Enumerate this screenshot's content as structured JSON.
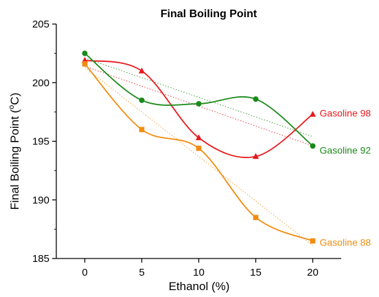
{
  "chart_data": {
    "type": "line",
    "title": "Final Boiling Point",
    "xlabel": "Ethanol (%)",
    "ylabel": {
      "prefix": "Final Boiling Point (",
      "sup": "o",
      "suffix": "C)"
    },
    "x": [
      0,
      5,
      10,
      15,
      20
    ],
    "xlim": [
      -2.5,
      22.5
    ],
    "ylim": [
      185,
      205
    ],
    "xticks": [
      0,
      5,
      10,
      15,
      20
    ],
    "yticks": [
      185,
      190,
      195,
      200,
      205
    ],
    "series": [
      {
        "name": "Gasoline 98",
        "color": "#e8191d",
        "marker": "triangle",
        "values": [
          201.9,
          201.0,
          195.3,
          193.7,
          197.3
        ],
        "trend": [
          201.4,
          194.6
        ]
      },
      {
        "name": "Gasoline 92",
        "color": "#1a8a1a",
        "marker": "circle",
        "values": [
          202.5,
          198.5,
          198.2,
          198.6,
          194.6
        ],
        "trend": [
          202.1,
          195.4
        ]
      },
      {
        "name": "Gasoline 88",
        "color": "#f28c0f",
        "marker": "square",
        "values": [
          201.6,
          196.0,
          194.4,
          188.5,
          186.5
        ],
        "trend": [
          201.3,
          186.1
        ]
      }
    ]
  }
}
